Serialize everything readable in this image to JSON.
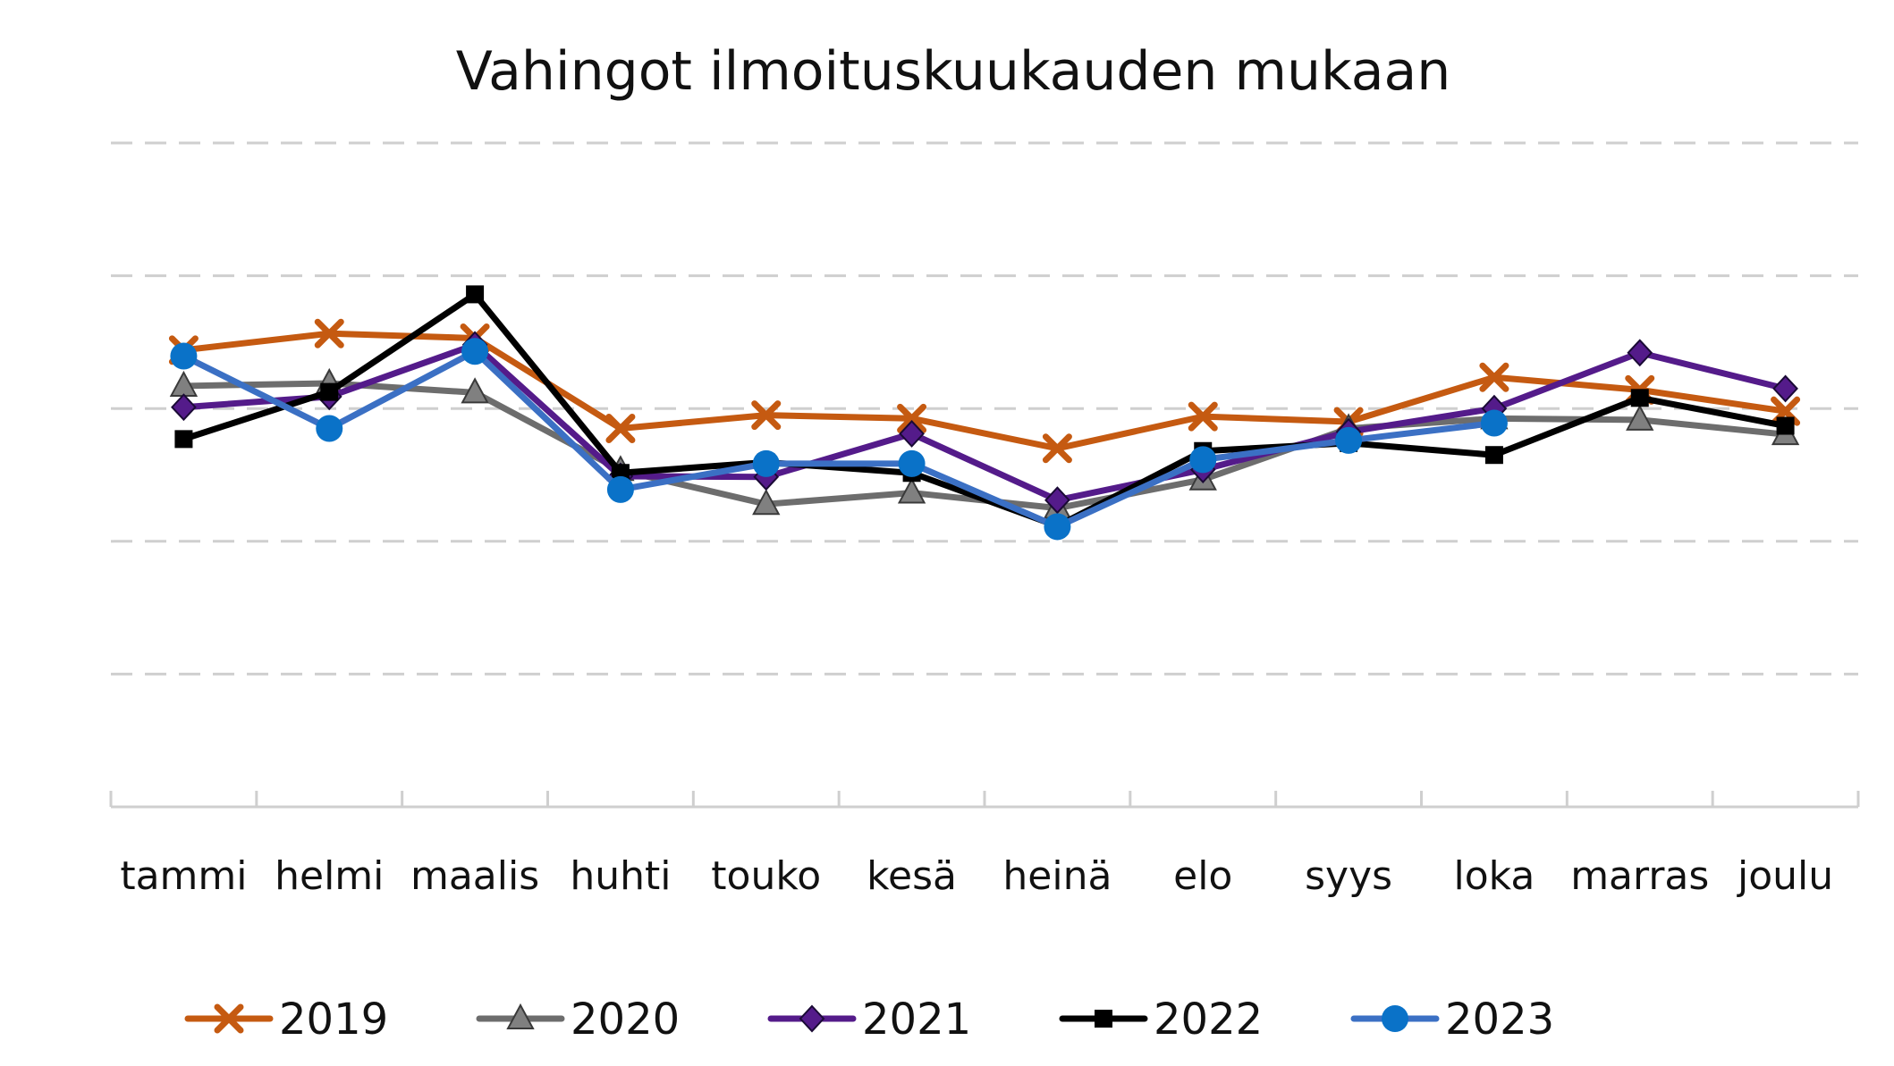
{
  "chart_data": {
    "type": "line",
    "title": "Vahingot ilmoituskuukauden mukaan",
    "xlabel": "",
    "ylabel": "",
    "categories": [
      "tammi",
      "helmi",
      "maalis",
      "huhti",
      "touko",
      "kesä",
      "heinä",
      "elo",
      "syys",
      "loka",
      "marras",
      "joulu"
    ],
    "ylim": [
      0,
      100
    ],
    "y_ticks_labeled": false,
    "grid": true,
    "legend_position": "bottom",
    "series": [
      {
        "name": "2019",
        "color": "#C55A11",
        "marker": "x",
        "values": [
          68.8,
          71.3,
          70.6,
          57.0,
          59.0,
          58.5,
          54.0,
          58.8,
          58.0,
          64.7,
          62.8,
          59.6
        ]
      },
      {
        "name": "2020",
        "color": "#6D6D6D",
        "marker": "triangle",
        "values": [
          63.4,
          63.8,
          62.4,
          50.7,
          45.6,
          47.3,
          45.0,
          49.3,
          57.0,
          58.5,
          58.3,
          56.1
        ]
      },
      {
        "name": "2021",
        "color": "#541B8A",
        "marker": "diamond",
        "values": [
          60.2,
          61.8,
          69.6,
          49.8,
          49.7,
          56.2,
          46.2,
          50.8,
          56.5,
          60.0,
          68.4,
          63.0
        ]
      },
      {
        "name": "2022",
        "color": "#000000",
        "marker": "square",
        "values": [
          55.4,
          62.5,
          77.2,
          50.3,
          51.9,
          50.3,
          42.3,
          53.6,
          54.8,
          53.0,
          61.6,
          57.4
        ]
      },
      {
        "name": "2023",
        "color": "#3B70C4",
        "marker": "circle",
        "values": [
          67.9,
          57.0,
          68.6,
          47.8,
          51.7,
          51.7,
          42.2,
          52.3,
          55.2,
          57.8,
          null,
          null
        ]
      }
    ]
  }
}
